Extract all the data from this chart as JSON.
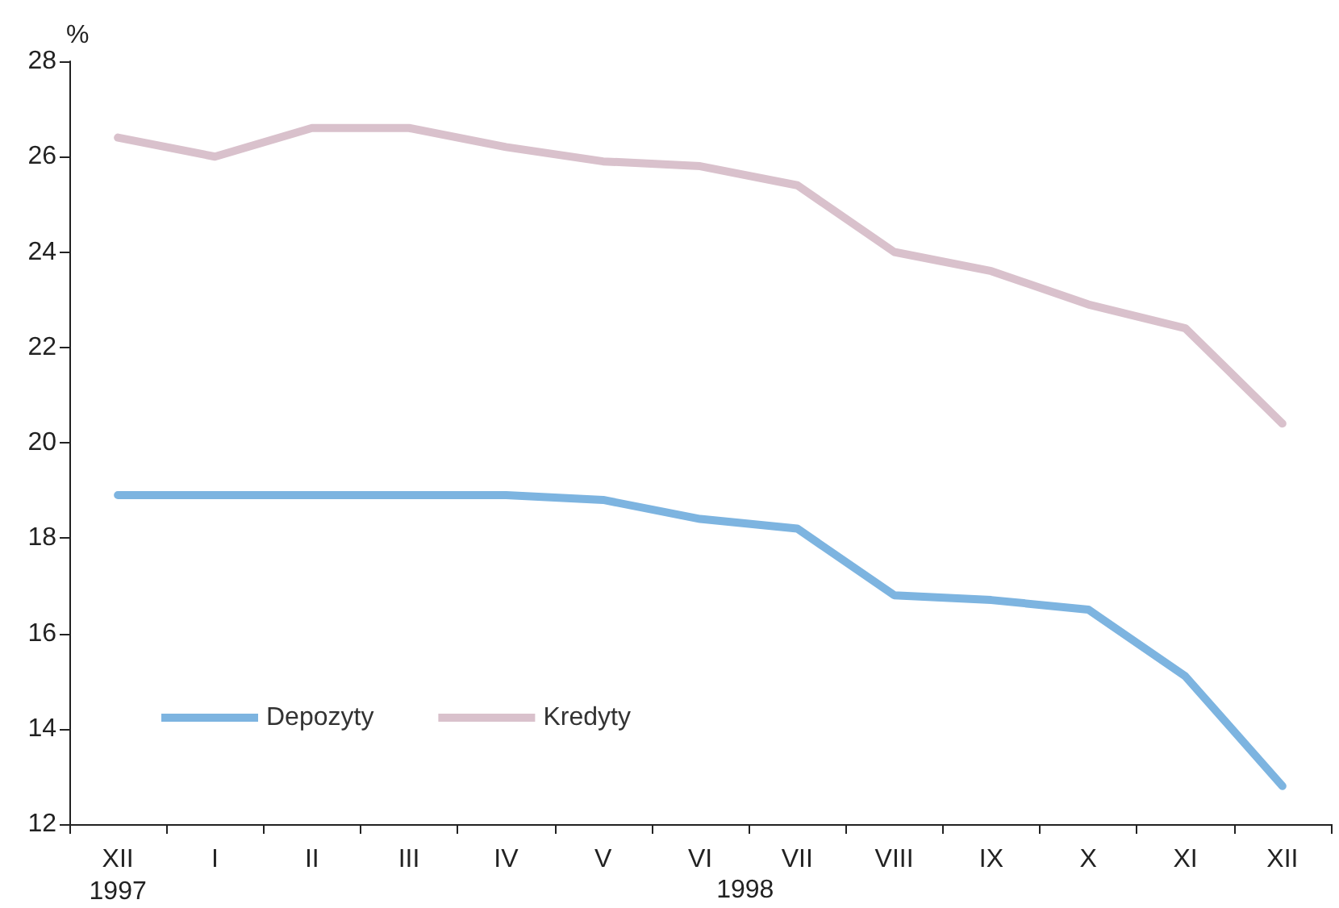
{
  "chart_data": {
    "type": "line",
    "ylabel": "%",
    "categories": [
      "XII\n1997",
      "I",
      "II",
      "III",
      "IV",
      "V",
      "VI",
      "VII",
      "VIII",
      "IX",
      "X",
      "XI",
      "XII"
    ],
    "series": [
      {
        "name": "Depozyty",
        "color": "#7db4e0",
        "values": [
          18.9,
          18.9,
          18.9,
          18.9,
          18.9,
          18.8,
          18.4,
          18.2,
          16.8,
          16.7,
          16.5,
          15.1,
          12.8
        ]
      },
      {
        "name": "Kredyty",
        "color": "#d9c1cc",
        "values": [
          26.4,
          26.0,
          26.6,
          26.6,
          26.2,
          25.9,
          25.8,
          25.4,
          24.0,
          23.6,
          22.9,
          22.4,
          20.4
        ]
      }
    ],
    "ylim": [
      12,
      28
    ],
    "yticks": [
      12,
      14,
      16,
      18,
      20,
      22,
      24,
      26,
      28
    ],
    "grid": false,
    "legend": "bottom left",
    "marker": "none",
    "line_style": "solid",
    "annotations": [
      "1998"
    ]
  }
}
